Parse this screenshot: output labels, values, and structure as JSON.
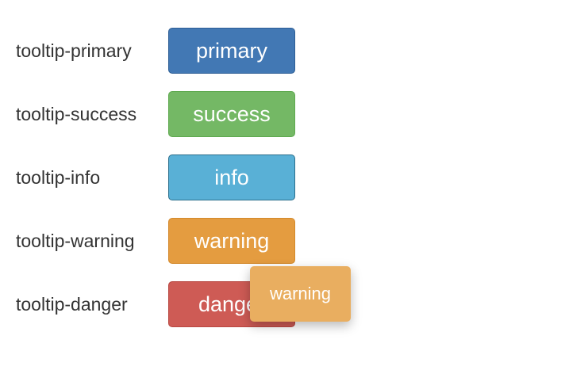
{
  "rows": [
    {
      "label": "tooltip-primary",
      "button": "primary"
    },
    {
      "label": "tooltip-success",
      "button": "success"
    },
    {
      "label": "tooltip-info",
      "button": "info"
    },
    {
      "label": "tooltip-warning",
      "button": "warning"
    },
    {
      "label": "tooltip-danger",
      "button": "danger"
    }
  ],
  "tooltip": {
    "text": "warning"
  },
  "colors": {
    "primary": "#4278b4",
    "success": "#74b865",
    "info": "#59b0d6",
    "warning": "#e49c40",
    "danger": "#ce5b55",
    "tooltip_bg": "#e9ae60"
  }
}
